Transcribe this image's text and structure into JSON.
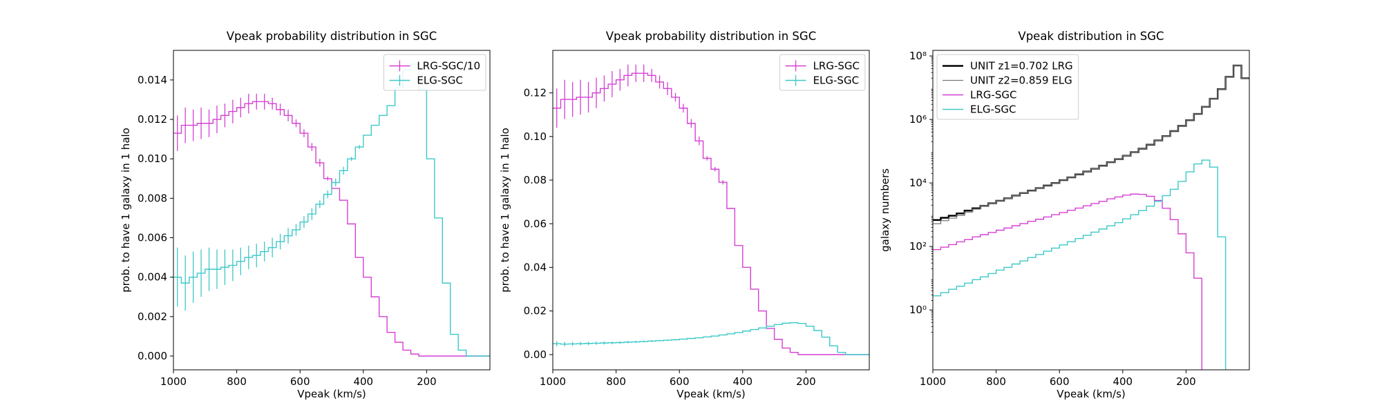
{
  "chart_data": [
    {
      "type": "histogram",
      "title": "Vpeak probability distribution in SGC",
      "xlabel": "Vpeak (km/s)",
      "ylabel": "prob. to have 1 galaxy in 1 halo",
      "bins": [
        1000,
        975,
        950,
        925,
        900,
        875,
        850,
        825,
        800,
        775,
        750,
        725,
        700,
        675,
        650,
        625,
        600,
        575,
        550,
        525,
        500,
        475,
        450,
        425,
        400,
        375,
        350,
        325,
        300,
        275,
        250,
        225,
        200,
        175,
        150,
        125,
        100,
        75,
        50,
        25,
        0
      ],
      "xlim": [
        1000,
        0
      ],
      "xticks": [
        1000,
        800,
        600,
        400,
        200
      ],
      "ylim": [
        -0.0007,
        0.0155
      ],
      "yticks": [
        {
          "value": 0,
          "label": "0.000"
        },
        {
          "value": 0.002,
          "label": "0.002"
        },
        {
          "value": 0.004,
          "label": "0.004"
        },
        {
          "value": 0.006,
          "label": "0.006"
        },
        {
          "value": 0.008,
          "label": "0.008"
        },
        {
          "value": 0.01,
          "label": "0.010"
        },
        {
          "value": 0.012,
          "label": "0.012"
        },
        {
          "value": 0.014,
          "label": "0.014"
        }
      ],
      "yscale": "linear",
      "legend": "upper right",
      "series": [
        {
          "name": "LRG-SGC/10",
          "color": "#d43fd4",
          "linewidth": 1.4,
          "values": [
            0.0113,
            0.0117,
            0.0117,
            0.0118,
            0.0118,
            0.012,
            0.0122,
            0.0124,
            0.0126,
            0.0128,
            0.0129,
            0.0129,
            0.0128,
            0.0125,
            0.0122,
            0.0118,
            0.0113,
            0.0106,
            0.0098,
            0.009,
            0.0085,
            0.0079,
            0.0067,
            0.005,
            0.004,
            0.003,
            0.002,
            0.0012,
            0.0007,
            0.0003,
            0.0001,
            0,
            0,
            0,
            0,
            0,
            0,
            0,
            0,
            0
          ],
          "errors": [
            0.0009,
            0.0009,
            0.0008,
            0.0008,
            0.0007,
            0.0007,
            0.0006,
            0.0006,
            0.0005,
            0.0005,
            0.0004,
            0.0004,
            0.0003,
            0.0003,
            0.0003,
            0.0002,
            0.0002,
            0.0002,
            0.0002,
            0.0001,
            0,
            0,
            0,
            0,
            0,
            0,
            0,
            0,
            0,
            0,
            0,
            0,
            0,
            0,
            0,
            0,
            0,
            0,
            0,
            0
          ]
        },
        {
          "name": "ELG-SGC",
          "color": "#3cc8c8",
          "linewidth": 1.4,
          "values": [
            0.004,
            0.0037,
            0.004,
            0.0042,
            0.0044,
            0.0044,
            0.0045,
            0.0046,
            0.0048,
            0.005,
            0.0051,
            0.0053,
            0.0055,
            0.0058,
            0.0061,
            0.0064,
            0.0068,
            0.0072,
            0.0077,
            0.0082,
            0.0088,
            0.0094,
            0.01,
            0.0106,
            0.0112,
            0.0117,
            0.0122,
            0.0127,
            0.0136,
            0.0145,
            0.0148,
            0.0135,
            0.01,
            0.007,
            0.0037,
            0.0011,
            0.0003,
            0,
            0,
            0
          ],
          "errors": [
            0.0015,
            0.0014,
            0.0013,
            0.0012,
            0.0011,
            0.001,
            0.0009,
            0.0008,
            0.0007,
            0.0006,
            0.0006,
            0.0005,
            0.0005,
            0.0004,
            0.0004,
            0.0003,
            0.0003,
            0.0003,
            0.0002,
            0.0002,
            0.0002,
            0.0002,
            0.0001,
            0.0001,
            0,
            0,
            0,
            0,
            0,
            0,
            0,
            0,
            0,
            0,
            0,
            0,
            0,
            0,
            0,
            0
          ]
        }
      ]
    },
    {
      "type": "histogram",
      "title": "Vpeak probability distribution in SGC",
      "xlabel": "Vpeak (km/s)",
      "ylabel": "prob. to have 1 galaxy in 1 halo",
      "bins": [
        1000,
        975,
        950,
        925,
        900,
        875,
        850,
        825,
        800,
        775,
        750,
        725,
        700,
        675,
        650,
        625,
        600,
        575,
        550,
        525,
        500,
        475,
        450,
        425,
        400,
        375,
        350,
        325,
        300,
        275,
        250,
        225,
        200,
        175,
        150,
        125,
        100,
        75,
        50,
        25,
        0
      ],
      "xlim": [
        1000,
        0
      ],
      "xticks": [
        1000,
        800,
        600,
        400,
        200
      ],
      "ylim": [
        -0.007,
        0.1395
      ],
      "yticks": [
        {
          "value": 0,
          "label": "0.00"
        },
        {
          "value": 0.02,
          "label": "0.02"
        },
        {
          "value": 0.04,
          "label": "0.04"
        },
        {
          "value": 0.06,
          "label": "0.06"
        },
        {
          "value": 0.08,
          "label": "0.08"
        },
        {
          "value": 0.1,
          "label": "0.10"
        },
        {
          "value": 0.12,
          "label": "0.12"
        }
      ],
      "yscale": "linear",
      "legend": "upper right",
      "series": [
        {
          "name": "LRG-SGC",
          "color": "#d43fd4",
          "linewidth": 1.4,
          "values": [
            0.113,
            0.117,
            0.117,
            0.118,
            0.118,
            0.12,
            0.122,
            0.124,
            0.126,
            0.128,
            0.129,
            0.129,
            0.128,
            0.125,
            0.122,
            0.118,
            0.113,
            0.106,
            0.098,
            0.09,
            0.085,
            0.079,
            0.067,
            0.05,
            0.04,
            0.03,
            0.02,
            0.012,
            0.007,
            0.003,
            0.001,
            0,
            0,
            0,
            0,
            0,
            0,
            0,
            0,
            0
          ],
          "errors": [
            0.009,
            0.009,
            0.008,
            0.008,
            0.007,
            0.007,
            0.006,
            0.006,
            0.005,
            0.005,
            0.004,
            0.004,
            0.003,
            0.003,
            0.003,
            0.002,
            0.002,
            0.002,
            0.002,
            0.001,
            0.001,
            0.001,
            0,
            0,
            0,
            0,
            0,
            0,
            0,
            0,
            0,
            0,
            0,
            0,
            0,
            0,
            0,
            0,
            0,
            0
          ]
        },
        {
          "name": "ELG-SGC",
          "color": "#3cc8c8",
          "linewidth": 1.4,
          "values": [
            0.005,
            0.0048,
            0.0049,
            0.005,
            0.0051,
            0.0052,
            0.0053,
            0.0054,
            0.0055,
            0.0057,
            0.0058,
            0.006,
            0.0062,
            0.0064,
            0.0066,
            0.0068,
            0.0071,
            0.0074,
            0.0077,
            0.0081,
            0.0085,
            0.009,
            0.0095,
            0.0101,
            0.0108,
            0.0115,
            0.0122,
            0.013,
            0.0138,
            0.0144,
            0.0146,
            0.0143,
            0.013,
            0.011,
            0.008,
            0.004,
            0.001,
            0,
            0,
            0
          ],
          "errors": [
            0.0012,
            0.001,
            0.0009,
            0.0008,
            0.0008,
            0.0007,
            0.0007,
            0.0006,
            0.0006,
            0.0005,
            0.0005,
            0.0004,
            0.0004,
            0.0003,
            0.0003,
            0.0003,
            0.0002,
            0.0002,
            0.0002,
            0.0002,
            0.0001,
            0.0001,
            0,
            0,
            0,
            0,
            0,
            0,
            0,
            0,
            0,
            0,
            0,
            0,
            0,
            0,
            0,
            0,
            0,
            0
          ]
        }
      ]
    },
    {
      "type": "histogram",
      "title": "Vpeak distribution in SGC",
      "xlabel": "Vpeak (km/s)",
      "ylabel": "galaxy numbers",
      "bins": [
        1000,
        975,
        950,
        925,
        900,
        875,
        850,
        825,
        800,
        775,
        750,
        725,
        700,
        675,
        650,
        625,
        600,
        575,
        550,
        525,
        500,
        475,
        450,
        425,
        400,
        375,
        350,
        325,
        300,
        275,
        250,
        225,
        200,
        175,
        150,
        125,
        100,
        75,
        50,
        25,
        0
      ],
      "xlim": [
        1000,
        0
      ],
      "xticks": [
        1000,
        800,
        600,
        400,
        200
      ],
      "ylim": [
        0.013,
        150000000
      ],
      "yticks": [
        {
          "value": 1,
          "label": "10⁰"
        },
        {
          "value": 100,
          "label": "10²"
        },
        {
          "value": 10000,
          "label": "10⁴"
        },
        {
          "value": 1000000,
          "label": "10⁶"
        },
        {
          "value": 100000000,
          "label": "10⁸"
        }
      ],
      "yscale": "log",
      "legend": "upper left",
      "series": [
        {
          "name": "UNIT z1=0.702 LRG",
          "color": "#000000",
          "linewidth": 2.4,
          "values": [
            680,
            800,
            930,
            1100,
            1350,
            1600,
            1900,
            2300,
            2750,
            3300,
            4000,
            4800,
            5750,
            6900,
            8300,
            10000,
            12300,
            15000,
            18600,
            23000,
            28000,
            35000,
            45000,
            56000,
            72000,
            93000,
            120000,
            160000,
            220000,
            300000,
            430000,
            630000,
            950000,
            1500000,
            2500000,
            4500000,
            9000000,
            22000000,
            50000000,
            20000000
          ]
        },
        {
          "name": "UNIT z2=0.859 ELG",
          "color": "#777777",
          "linewidth": 1.3,
          "values": [
            520,
            650,
            780,
            950,
            1200,
            1500,
            1900,
            2300,
            2750,
            3300,
            4000,
            4800,
            5750,
            6900,
            8300,
            10000,
            12300,
            15000,
            18600,
            23000,
            28000,
            35000,
            45000,
            56000,
            72000,
            93000,
            120000,
            160000,
            220000,
            300000,
            430000,
            630000,
            950000,
            1500000,
            2500000,
            4500000,
            9000000,
            22000000,
            50000000,
            20000000
          ]
        },
        {
          "name": "LRG-SGC",
          "color": "#d43fd4",
          "linewidth": 1.4,
          "values": [
            80,
            95,
            115,
            140,
            165,
            200,
            235,
            275,
            325,
            380,
            450,
            525,
            620,
            720,
            850,
            1000,
            1170,
            1380,
            1620,
            1900,
            2240,
            2630,
            3160,
            3630,
            4170,
            4470,
            4370,
            3800,
            2800,
            1600,
            700,
            250,
            63,
            10,
            0,
            0,
            0,
            0,
            0,
            0
          ]
        },
        {
          "name": "ELG-SGC",
          "color": "#3cc8c8",
          "linewidth": 1.4,
          "values": [
            2.8,
            3.5,
            4.5,
            5.6,
            7,
            9,
            11,
            14,
            18,
            22,
            28,
            35,
            45,
            56,
            71,
            89,
            112,
            141,
            178,
            224,
            282,
            355,
            447,
            562,
            741,
            1000,
            1350,
            1860,
            2630,
            3980,
            6310,
            11200,
            22400,
            39800,
            52500,
            31600,
            200,
            0,
            0,
            0
          ]
        }
      ]
    }
  ]
}
